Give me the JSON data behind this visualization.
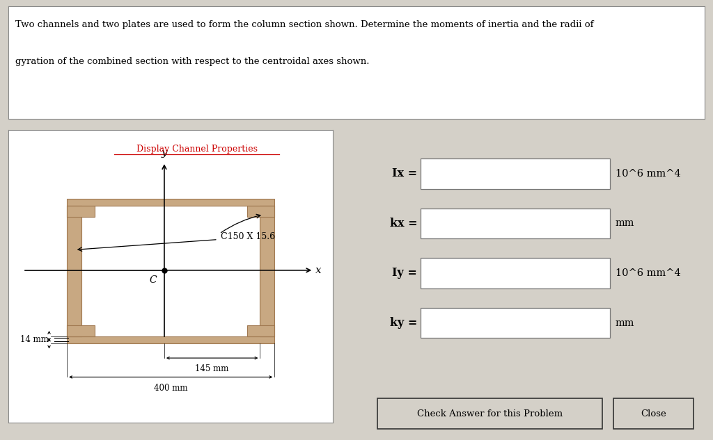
{
  "title_line1": "Two channels and two plates are used to form the column section shown. Determine the moments of inertia and the radii of",
  "title_line2": "gyration of the combined section with respect to the centroidal axes shown.",
  "bg_color": "#d4d0c8",
  "white_box_bg": "#ffffff",
  "channel_color": "#c8a882",
  "channel_edge": "#a07850",
  "link_text": "Display Channel Properties",
  "link_color": "#cc0000",
  "label_c150": "C150 X 15.6",
  "dim_400": "400 mm",
  "dim_145": "145 mm",
  "dim_14": "14 mm",
  "fields": [
    {
      "label": "Ix =",
      "unit": "10^6 mm^4"
    },
    {
      "label": "kx =",
      "unit": "mm"
    },
    {
      "label": "Iy =",
      "unit": "10^6 mm^4"
    },
    {
      "label": "ky =",
      "unit": "mm"
    }
  ],
  "btn1_text": "Check Answer for this Problem",
  "btn2_text": "Close"
}
